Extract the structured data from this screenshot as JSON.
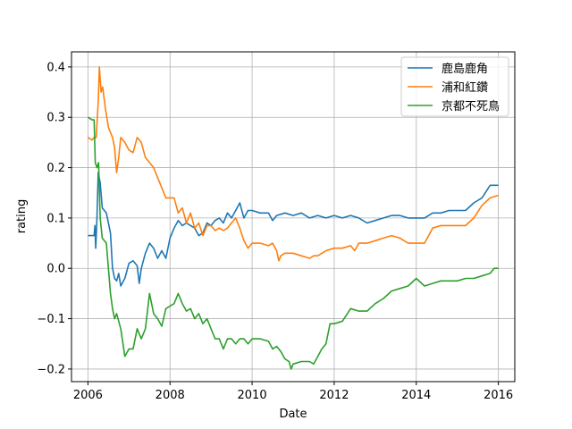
{
  "chart_data": {
    "type": "line",
    "title": "",
    "xlabel": "Date",
    "ylabel": "rating",
    "xlim": [
      2005.6,
      2016.4
    ],
    "ylim": [
      -0.225,
      0.43
    ],
    "x_ticks": [
      2006,
      2008,
      2010,
      2012,
      2014,
      2016
    ],
    "x_tick_labels": [
      "2006",
      "2008",
      "2010",
      "2012",
      "2014",
      "2016"
    ],
    "y_ticks": [
      -0.2,
      -0.1,
      0.0,
      0.1,
      0.2,
      0.3,
      0.4
    ],
    "y_tick_labels": [
      "−0.2",
      "−0.1",
      "0.0",
      "0.1",
      "0.2",
      "0.3",
      "0.4"
    ],
    "grid": true,
    "legend_position": "top-right",
    "series": [
      {
        "name": "鹿島鹿角",
        "color": "#1f77b4",
        "points": [
          [
            2006.0,
            0.065
          ],
          [
            2006.1,
            0.065
          ],
          [
            2006.15,
            0.065
          ],
          [
            2006.17,
            0.085
          ],
          [
            2006.19,
            0.04
          ],
          [
            2006.22,
            0.1
          ],
          [
            2006.25,
            0.19
          ],
          [
            2006.3,
            0.17
          ],
          [
            2006.35,
            0.12
          ],
          [
            2006.45,
            0.11
          ],
          [
            2006.55,
            0.07
          ],
          [
            2006.6,
            0.0
          ],
          [
            2006.65,
            -0.02
          ],
          [
            2006.7,
            -0.025
          ],
          [
            2006.75,
            -0.01
          ],
          [
            2006.8,
            -0.035
          ],
          [
            2006.9,
            -0.02
          ],
          [
            2007.0,
            0.01
          ],
          [
            2007.1,
            0.015
          ],
          [
            2007.2,
            0.005
          ],
          [
            2007.25,
            -0.03
          ],
          [
            2007.3,
            0.0
          ],
          [
            2007.4,
            0.03
          ],
          [
            2007.5,
            0.05
          ],
          [
            2007.6,
            0.04
          ],
          [
            2007.7,
            0.02
          ],
          [
            2007.8,
            0.035
          ],
          [
            2007.9,
            0.02
          ],
          [
            2008.0,
            0.06
          ],
          [
            2008.1,
            0.08
          ],
          [
            2008.2,
            0.095
          ],
          [
            2008.3,
            0.085
          ],
          [
            2008.4,
            0.09
          ],
          [
            2008.5,
            0.085
          ],
          [
            2008.6,
            0.08
          ],
          [
            2008.7,
            0.065
          ],
          [
            2008.8,
            0.07
          ],
          [
            2008.9,
            0.09
          ],
          [
            2009.0,
            0.085
          ],
          [
            2009.1,
            0.095
          ],
          [
            2009.2,
            0.1
          ],
          [
            2009.3,
            0.09
          ],
          [
            2009.4,
            0.11
          ],
          [
            2009.5,
            0.1
          ],
          [
            2009.6,
            0.115
          ],
          [
            2009.7,
            0.13
          ],
          [
            2009.8,
            0.1
          ],
          [
            2009.9,
            0.115
          ],
          [
            2010.0,
            0.115
          ],
          [
            2010.2,
            0.11
          ],
          [
            2010.4,
            0.11
          ],
          [
            2010.5,
            0.095
          ],
          [
            2010.6,
            0.105
          ],
          [
            2010.8,
            0.11
          ],
          [
            2011.0,
            0.105
          ],
          [
            2011.2,
            0.11
          ],
          [
            2011.4,
            0.1
          ],
          [
            2011.6,
            0.105
          ],
          [
            2011.8,
            0.1
          ],
          [
            2012.0,
            0.105
          ],
          [
            2012.2,
            0.1
          ],
          [
            2012.4,
            0.105
          ],
          [
            2012.6,
            0.1
          ],
          [
            2012.8,
            0.09
          ],
          [
            2013.0,
            0.095
          ],
          [
            2013.2,
            0.1
          ],
          [
            2013.4,
            0.105
          ],
          [
            2013.6,
            0.105
          ],
          [
            2013.8,
            0.1
          ],
          [
            2014.0,
            0.1
          ],
          [
            2014.2,
            0.1
          ],
          [
            2014.4,
            0.11
          ],
          [
            2014.6,
            0.11
          ],
          [
            2014.8,
            0.115
          ],
          [
            2015.0,
            0.115
          ],
          [
            2015.2,
            0.115
          ],
          [
            2015.4,
            0.13
          ],
          [
            2015.6,
            0.14
          ],
          [
            2015.8,
            0.165
          ],
          [
            2016.0,
            0.165
          ]
        ]
      },
      {
        "name": "浦和紅鑽",
        "color": "#ff7f0e",
        "points": [
          [
            2006.0,
            0.26
          ],
          [
            2006.1,
            0.255
          ],
          [
            2006.15,
            0.26
          ],
          [
            2006.2,
            0.26
          ],
          [
            2006.25,
            0.33
          ],
          [
            2006.28,
            0.4
          ],
          [
            2006.32,
            0.35
          ],
          [
            2006.36,
            0.36
          ],
          [
            2006.42,
            0.32
          ],
          [
            2006.5,
            0.28
          ],
          [
            2006.6,
            0.26
          ],
          [
            2006.65,
            0.24
          ],
          [
            2006.7,
            0.19
          ],
          [
            2006.75,
            0.22
          ],
          [
            2006.8,
            0.26
          ],
          [
            2006.9,
            0.25
          ],
          [
            2007.0,
            0.235
          ],
          [
            2007.1,
            0.23
          ],
          [
            2007.2,
            0.26
          ],
          [
            2007.3,
            0.25
          ],
          [
            2007.4,
            0.22
          ],
          [
            2007.5,
            0.21
          ],
          [
            2007.6,
            0.2
          ],
          [
            2007.7,
            0.18
          ],
          [
            2007.8,
            0.16
          ],
          [
            2007.9,
            0.14
          ],
          [
            2008.0,
            0.14
          ],
          [
            2008.1,
            0.14
          ],
          [
            2008.2,
            0.11
          ],
          [
            2008.3,
            0.12
          ],
          [
            2008.4,
            0.09
          ],
          [
            2008.5,
            0.11
          ],
          [
            2008.6,
            0.08
          ],
          [
            2008.7,
            0.09
          ],
          [
            2008.8,
            0.065
          ],
          [
            2008.9,
            0.085
          ],
          [
            2009.0,
            0.085
          ],
          [
            2009.1,
            0.075
          ],
          [
            2009.2,
            0.08
          ],
          [
            2009.3,
            0.075
          ],
          [
            2009.4,
            0.08
          ],
          [
            2009.5,
            0.09
          ],
          [
            2009.6,
            0.1
          ],
          [
            2009.7,
            0.08
          ],
          [
            2009.8,
            0.055
          ],
          [
            2009.9,
            0.04
          ],
          [
            2010.0,
            0.05
          ],
          [
            2010.2,
            0.05
          ],
          [
            2010.4,
            0.045
          ],
          [
            2010.5,
            0.05
          ],
          [
            2010.6,
            0.035
          ],
          [
            2010.65,
            0.015
          ],
          [
            2010.7,
            0.025
          ],
          [
            2010.8,
            0.03
          ],
          [
            2011.0,
            0.03
          ],
          [
            2011.2,
            0.025
          ],
          [
            2011.4,
            0.02
          ],
          [
            2011.5,
            0.025
          ],
          [
            2011.6,
            0.025
          ],
          [
            2011.8,
            0.035
          ],
          [
            2012.0,
            0.04
          ],
          [
            2012.2,
            0.04
          ],
          [
            2012.4,
            0.045
          ],
          [
            2012.5,
            0.035
          ],
          [
            2012.6,
            0.05
          ],
          [
            2012.8,
            0.05
          ],
          [
            2013.0,
            0.055
          ],
          [
            2013.2,
            0.06
          ],
          [
            2013.4,
            0.065
          ],
          [
            2013.6,
            0.06
          ],
          [
            2013.8,
            0.05
          ],
          [
            2014.0,
            0.05
          ],
          [
            2014.2,
            0.05
          ],
          [
            2014.4,
            0.08
          ],
          [
            2014.6,
            0.085
          ],
          [
            2014.8,
            0.085
          ],
          [
            2015.0,
            0.085
          ],
          [
            2015.2,
            0.085
          ],
          [
            2015.4,
            0.1
          ],
          [
            2015.6,
            0.125
          ],
          [
            2015.8,
            0.14
          ],
          [
            2016.0,
            0.145
          ]
        ]
      },
      {
        "name": "京都不死鳥",
        "color": "#2ca02c",
        "points": [
          [
            2006.0,
            0.3
          ],
          [
            2006.1,
            0.295
          ],
          [
            2006.15,
            0.295
          ],
          [
            2006.18,
            0.21
          ],
          [
            2006.22,
            0.2
          ],
          [
            2006.26,
            0.21
          ],
          [
            2006.3,
            0.1
          ],
          [
            2006.35,
            0.06
          ],
          [
            2006.45,
            0.05
          ],
          [
            2006.5,
            0.0
          ],
          [
            2006.55,
            -0.05
          ],
          [
            2006.6,
            -0.08
          ],
          [
            2006.65,
            -0.1
          ],
          [
            2006.7,
            -0.09
          ],
          [
            2006.8,
            -0.12
          ],
          [
            2006.9,
            -0.175
          ],
          [
            2007.0,
            -0.16
          ],
          [
            2007.1,
            -0.16
          ],
          [
            2007.2,
            -0.12
          ],
          [
            2007.3,
            -0.14
          ],
          [
            2007.4,
            -0.12
          ],
          [
            2007.5,
            -0.05
          ],
          [
            2007.6,
            -0.09
          ],
          [
            2007.7,
            -0.1
          ],
          [
            2007.8,
            -0.115
          ],
          [
            2007.9,
            -0.08
          ],
          [
            2008.0,
            -0.075
          ],
          [
            2008.1,
            -0.07
          ],
          [
            2008.2,
            -0.05
          ],
          [
            2008.3,
            -0.07
          ],
          [
            2008.4,
            -0.085
          ],
          [
            2008.5,
            -0.08
          ],
          [
            2008.6,
            -0.1
          ],
          [
            2008.7,
            -0.09
          ],
          [
            2008.8,
            -0.11
          ],
          [
            2008.9,
            -0.1
          ],
          [
            2009.0,
            -0.12
          ],
          [
            2009.1,
            -0.14
          ],
          [
            2009.2,
            -0.14
          ],
          [
            2009.3,
            -0.16
          ],
          [
            2009.4,
            -0.14
          ],
          [
            2009.5,
            -0.14
          ],
          [
            2009.6,
            -0.15
          ],
          [
            2009.7,
            -0.14
          ],
          [
            2009.8,
            -0.14
          ],
          [
            2009.9,
            -0.15
          ],
          [
            2010.0,
            -0.14
          ],
          [
            2010.2,
            -0.14
          ],
          [
            2010.4,
            -0.145
          ],
          [
            2010.5,
            -0.16
          ],
          [
            2010.6,
            -0.155
          ],
          [
            2010.7,
            -0.165
          ],
          [
            2010.8,
            -0.18
          ],
          [
            2010.9,
            -0.185
          ],
          [
            2010.95,
            -0.2
          ],
          [
            2011.0,
            -0.19
          ],
          [
            2011.2,
            -0.185
          ],
          [
            2011.4,
            -0.185
          ],
          [
            2011.5,
            -0.19
          ],
          [
            2011.6,
            -0.175
          ],
          [
            2011.7,
            -0.16
          ],
          [
            2011.8,
            -0.15
          ],
          [
            2011.9,
            -0.11
          ],
          [
            2012.0,
            -0.11
          ],
          [
            2012.2,
            -0.105
          ],
          [
            2012.4,
            -0.08
          ],
          [
            2012.6,
            -0.085
          ],
          [
            2012.8,
            -0.085
          ],
          [
            2013.0,
            -0.07
          ],
          [
            2013.2,
            -0.06
          ],
          [
            2013.4,
            -0.045
          ],
          [
            2013.6,
            -0.04
          ],
          [
            2013.8,
            -0.035
          ],
          [
            2014.0,
            -0.02
          ],
          [
            2014.2,
            -0.035
          ],
          [
            2014.4,
            -0.03
          ],
          [
            2014.6,
            -0.025
          ],
          [
            2014.8,
            -0.025
          ],
          [
            2015.0,
            -0.025
          ],
          [
            2015.2,
            -0.02
          ],
          [
            2015.4,
            -0.02
          ],
          [
            2015.6,
            -0.015
          ],
          [
            2015.8,
            -0.01
          ],
          [
            2015.9,
            0.0
          ],
          [
            2016.0,
            0.0
          ]
        ]
      }
    ]
  }
}
